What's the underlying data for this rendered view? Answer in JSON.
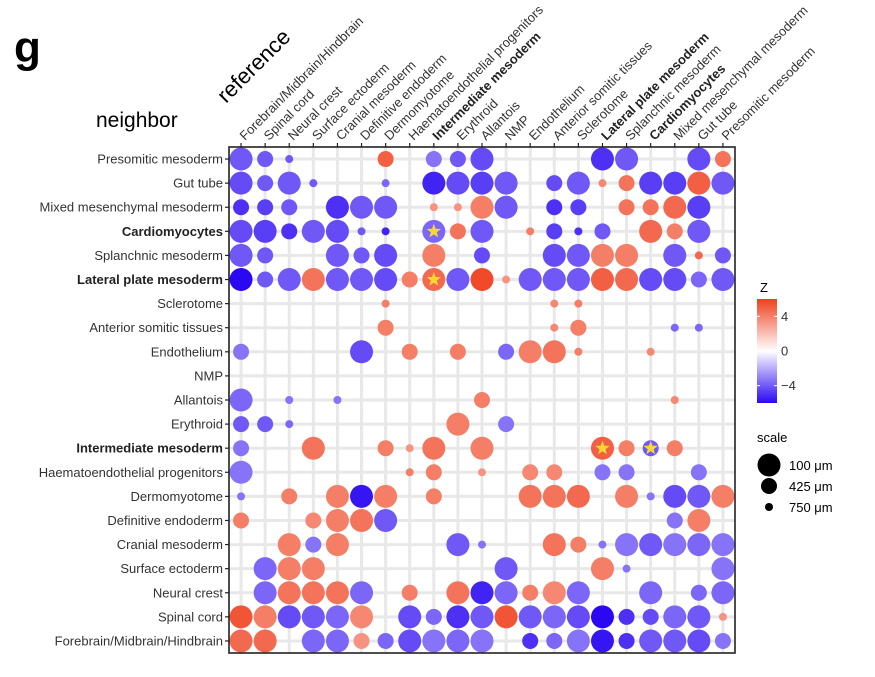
{
  "panel_label": "g",
  "chart_data": {
    "type": "bubble-heatmap",
    "x_title": "reference",
    "y_title": "neighbor",
    "categories": [
      "Forebrain/Midbrain/Hindbrain",
      "Spinal cord",
      "Neural crest",
      "Surface ectoderm",
      "Cranial mesoderm",
      "Definitive endoderm",
      "Dermomyotome",
      "Haematoendothelial progenitors",
      "Intermediate mesoderm",
      "Erythroid",
      "Allantois",
      "NMP",
      "Endothelium",
      "Anterior somitic tissues",
      "Sclerotome",
      "Lateral plate mesoderm",
      "Splanchnic mesoderm",
      "Cardiomyocytes",
      "Mixed mesenchymal mesoderm",
      "Gut tube",
      "Presomitic mesoderm"
    ],
    "bold_categories": [
      "Intermediate mesoderm",
      "Lateral plate mesoderm",
      "Cardiomyocytes"
    ],
    "points_note": "each point: [x_index (reference), y_index (neighbor, 0=Forebrain bottom row), z_score, scale_um]",
    "points": [
      [
        0,
        0,
        4,
        100
      ],
      [
        1,
        0,
        4,
        100
      ],
      [
        3,
        0,
        -2.5,
        100
      ],
      [
        4,
        0,
        -2.5,
        100
      ],
      [
        5,
        0,
        2,
        425
      ],
      [
        6,
        0,
        -2.5,
        425
      ],
      [
        7,
        0,
        -3.5,
        100
      ],
      [
        8,
        0,
        -2,
        100
      ],
      [
        9,
        0,
        -2.5,
        100
      ],
      [
        10,
        0,
        -2,
        100
      ],
      [
        12,
        0,
        -4.5,
        425
      ],
      [
        13,
        0,
        -2.5,
        425
      ],
      [
        14,
        0,
        -2,
        100
      ],
      [
        15,
        0,
        -5.5,
        100
      ],
      [
        16,
        0,
        -4.5,
        425
      ],
      [
        17,
        0,
        -3,
        100
      ],
      [
        18,
        0,
        -3,
        100
      ],
      [
        19,
        0,
        -3.5,
        100
      ],
      [
        20,
        0,
        -2,
        425
      ],
      [
        0,
        1,
        5,
        100
      ],
      [
        1,
        1,
        3,
        100
      ],
      [
        2,
        1,
        -3.5,
        100
      ],
      [
        3,
        1,
        -3,
        100
      ],
      [
        4,
        1,
        -2.5,
        100
      ],
      [
        5,
        1,
        2.5,
        100
      ],
      [
        7,
        1,
        -3.5,
        100
      ],
      [
        8,
        1,
        -2.5,
        425
      ],
      [
        9,
        1,
        -4.5,
        100
      ],
      [
        10,
        1,
        -3,
        100
      ],
      [
        11,
        1,
        5,
        100
      ],
      [
        12,
        1,
        -3,
        100
      ],
      [
        13,
        1,
        -2.5,
        100
      ],
      [
        14,
        1,
        -3.5,
        100
      ],
      [
        15,
        1,
        -6,
        100
      ],
      [
        16,
        1,
        -4.5,
        425
      ],
      [
        17,
        1,
        -3.5,
        425
      ],
      [
        18,
        1,
        -2.5,
        100
      ],
      [
        19,
        1,
        -3,
        100
      ],
      [
        20,
        1,
        2,
        750
      ],
      [
        1,
        2,
        -2.5,
        100
      ],
      [
        2,
        2,
        3.5,
        100
      ],
      [
        3,
        2,
        3.5,
        100
      ],
      [
        4,
        2,
        3.5,
        100
      ],
      [
        5,
        2,
        -2.5,
        100
      ],
      [
        7,
        2,
        3,
        425
      ],
      [
        9,
        2,
        3.5,
        100
      ],
      [
        10,
        2,
        -5,
        100
      ],
      [
        11,
        2,
        -2.5,
        100
      ],
      [
        12,
        2,
        3,
        425
      ],
      [
        13,
        2,
        2.5,
        100
      ],
      [
        14,
        2,
        -2.5,
        100
      ],
      [
        17,
        2,
        -2.5,
        100
      ],
      [
        19,
        2,
        -2.5,
        425
      ],
      [
        20,
        2,
        -2.5,
        100
      ],
      [
        1,
        3,
        -2.5,
        100
      ],
      [
        2,
        3,
        3,
        100
      ],
      [
        3,
        3,
        3,
        100
      ],
      [
        11,
        3,
        -3,
        100
      ],
      [
        15,
        3,
        3,
        100
      ],
      [
        16,
        3,
        -2,
        750
      ],
      [
        20,
        3,
        -2,
        100
      ],
      [
        2,
        4,
        3,
        100
      ],
      [
        3,
        4,
        -2,
        425
      ],
      [
        4,
        4,
        3,
        100
      ],
      [
        9,
        4,
        -3,
        100
      ],
      [
        10,
        4,
        -2,
        750
      ],
      [
        13,
        4,
        3.5,
        100
      ],
      [
        14,
        4,
        3,
        425
      ],
      [
        15,
        4,
        -2,
        750
      ],
      [
        16,
        4,
        -2,
        100
      ],
      [
        17,
        4,
        -3,
        100
      ],
      [
        18,
        4,
        -2,
        100
      ],
      [
        19,
        4,
        -2.5,
        100
      ],
      [
        20,
        4,
        -2,
        100
      ],
      [
        0,
        5,
        3,
        425
      ],
      [
        3,
        5,
        2.5,
        425
      ],
      [
        4,
        5,
        3,
        100
      ],
      [
        5,
        5,
        3.5,
        100
      ],
      [
        6,
        5,
        -3,
        100
      ],
      [
        18,
        5,
        -2,
        425
      ],
      [
        19,
        5,
        3,
        100
      ],
      [
        0,
        6,
        -2,
        750
      ],
      [
        2,
        6,
        3,
        425
      ],
      [
        4,
        6,
        3,
        100
      ],
      [
        5,
        6,
        -5.5,
        100
      ],
      [
        6,
        6,
        3,
        100
      ],
      [
        8,
        6,
        3,
        425
      ],
      [
        12,
        6,
        3.5,
        100
      ],
      [
        13,
        6,
        3.5,
        100
      ],
      [
        14,
        6,
        4,
        100
      ],
      [
        16,
        6,
        3,
        100
      ],
      [
        17,
        6,
        -2,
        750
      ],
      [
        18,
        6,
        -3.5,
        100
      ],
      [
        19,
        6,
        -3,
        100
      ],
      [
        20,
        6,
        3,
        100
      ],
      [
        0,
        7,
        -2,
        100
      ],
      [
        7,
        7,
        3,
        750
      ],
      [
        8,
        7,
        3,
        425
      ],
      [
        10,
        7,
        2,
        750
      ],
      [
        12,
        7,
        2.5,
        425
      ],
      [
        13,
        7,
        2.5,
        425
      ],
      [
        15,
        7,
        -2,
        425
      ],
      [
        16,
        7,
        -2,
        425
      ],
      [
        19,
        7,
        -2,
        425
      ],
      [
        0,
        8,
        -2,
        425
      ],
      [
        3,
        8,
        3.5,
        100
      ],
      [
        6,
        8,
        3,
        425
      ],
      [
        7,
        8,
        2,
        750
      ],
      [
        8,
        8,
        3.5,
        100
      ],
      [
        10,
        8,
        3,
        100
      ],
      [
        15,
        8,
        4.5,
        100
      ],
      [
        16,
        8,
        3,
        425
      ],
      [
        17,
        8,
        -3,
        425
      ],
      [
        18,
        8,
        3,
        425
      ],
      [
        0,
        9,
        -3,
        425
      ],
      [
        1,
        9,
        -3,
        425
      ],
      [
        2,
        9,
        -2.5,
        750
      ],
      [
        9,
        9,
        3,
        100
      ],
      [
        11,
        9,
        -2,
        425
      ],
      [
        0,
        10,
        -2.5,
        100
      ],
      [
        2,
        10,
        -2,
        750
      ],
      [
        4,
        10,
        -2,
        750
      ],
      [
        10,
        10,
        3,
        425
      ],
      [
        18,
        10,
        2.5,
        750
      ],
      [
        0,
        12,
        -2,
        425
      ],
      [
        5,
        12,
        -3.5,
        100
      ],
      [
        7,
        12,
        3,
        425
      ],
      [
        9,
        12,
        3,
        425
      ],
      [
        11,
        12,
        -2.5,
        425
      ],
      [
        12,
        12,
        3,
        100
      ],
      [
        13,
        12,
        3.5,
        100
      ],
      [
        14,
        12,
        3,
        750
      ],
      [
        17,
        12,
        2.5,
        750
      ],
      [
        6,
        13,
        3,
        425
      ],
      [
        13,
        13,
        2.5,
        750
      ],
      [
        14,
        13,
        3,
        425
      ],
      [
        18,
        13,
        -2.5,
        750
      ],
      [
        19,
        13,
        -2.5,
        750
      ],
      [
        6,
        14,
        3,
        750
      ],
      [
        13,
        14,
        2.5,
        750
      ],
      [
        14,
        14,
        3,
        750
      ],
      [
        0,
        15,
        -6,
        100
      ],
      [
        1,
        15,
        -3,
        425
      ],
      [
        2,
        15,
        -3,
        100
      ],
      [
        3,
        15,
        3.5,
        100
      ],
      [
        4,
        15,
        -3,
        100
      ],
      [
        5,
        15,
        -3,
        100
      ],
      [
        6,
        15,
        -3.5,
        100
      ],
      [
        7,
        15,
        3,
        425
      ],
      [
        8,
        15,
        4,
        100
      ],
      [
        9,
        15,
        -3,
        100
      ],
      [
        10,
        15,
        5.5,
        100
      ],
      [
        11,
        15,
        2,
        750
      ],
      [
        12,
        15,
        -3,
        100
      ],
      [
        13,
        15,
        -3,
        100
      ],
      [
        14,
        15,
        -3,
        100
      ],
      [
        15,
        15,
        4.5,
        100
      ],
      [
        16,
        15,
        4,
        100
      ],
      [
        17,
        15,
        -3.5,
        100
      ],
      [
        18,
        15,
        -3.5,
        100
      ],
      [
        19,
        15,
        -2.5,
        425
      ],
      [
        20,
        15,
        -3,
        100
      ],
      [
        0,
        16,
        -3,
        100
      ],
      [
        1,
        16,
        -3,
        425
      ],
      [
        4,
        16,
        -3,
        100
      ],
      [
        5,
        16,
        -3,
        425
      ],
      [
        6,
        16,
        -3.5,
        100
      ],
      [
        8,
        16,
        3,
        100
      ],
      [
        10,
        16,
        -3.5,
        425
      ],
      [
        13,
        16,
        -3.5,
        100
      ],
      [
        14,
        16,
        -3,
        100
      ],
      [
        15,
        16,
        3,
        100
      ],
      [
        16,
        16,
        3,
        100
      ],
      [
        18,
        16,
        -3,
        100
      ],
      [
        19,
        16,
        4,
        750
      ],
      [
        20,
        16,
        -3,
        425
      ],
      [
        0,
        17,
        -3.5,
        100
      ],
      [
        1,
        17,
        -4,
        100
      ],
      [
        2,
        17,
        -4.5,
        425
      ],
      [
        3,
        17,
        -3,
        100
      ],
      [
        4,
        17,
        -3.5,
        100
      ],
      [
        5,
        17,
        -3,
        750
      ],
      [
        6,
        17,
        -5,
        750
      ],
      [
        8,
        17,
        -2.5,
        100
      ],
      [
        9,
        17,
        3.5,
        425
      ],
      [
        10,
        17,
        -3,
        100
      ],
      [
        12,
        17,
        3,
        750
      ],
      [
        13,
        17,
        -4,
        425
      ],
      [
        14,
        17,
        -4.5,
        750
      ],
      [
        15,
        17,
        -3,
        425
      ],
      [
        17,
        17,
        4,
        100
      ],
      [
        18,
        17,
        3,
        425
      ],
      [
        19,
        17,
        -3,
        100
      ],
      [
        0,
        18,
        -4.5,
        425
      ],
      [
        1,
        18,
        -4,
        425
      ],
      [
        2,
        18,
        -3,
        425
      ],
      [
        4,
        18,
        -4.5,
        100
      ],
      [
        5,
        18,
        -3,
        100
      ],
      [
        6,
        18,
        -3,
        100
      ],
      [
        8,
        18,
        2,
        750
      ],
      [
        9,
        18,
        2,
        750
      ],
      [
        10,
        18,
        3,
        100
      ],
      [
        11,
        18,
        -3,
        100
      ],
      [
        13,
        18,
        -4.5,
        425
      ],
      [
        14,
        18,
        -4,
        425
      ],
      [
        16,
        18,
        3.5,
        425
      ],
      [
        17,
        18,
        3.5,
        425
      ],
      [
        18,
        18,
        4,
        100
      ],
      [
        19,
        18,
        -4,
        100
      ],
      [
        0,
        19,
        -3.5,
        100
      ],
      [
        1,
        19,
        -3,
        425
      ],
      [
        2,
        19,
        -3,
        100
      ],
      [
        3,
        19,
        -3,
        750
      ],
      [
        6,
        19,
        -2.5,
        750
      ],
      [
        8,
        19,
        -5,
        100
      ],
      [
        9,
        19,
        -3.5,
        100
      ],
      [
        10,
        19,
        -4,
        100
      ],
      [
        11,
        19,
        -3,
        100
      ],
      [
        13,
        19,
        -3.5,
        425
      ],
      [
        14,
        19,
        -3,
        100
      ],
      [
        15,
        19,
        2.5,
        750
      ],
      [
        16,
        19,
        3.5,
        425
      ],
      [
        17,
        19,
        -4,
        100
      ],
      [
        18,
        19,
        -4,
        100
      ],
      [
        19,
        19,
        4.5,
        100
      ],
      [
        20,
        19,
        -3,
        100
      ],
      [
        0,
        20,
        -3,
        100
      ],
      [
        1,
        20,
        -3,
        425
      ],
      [
        2,
        20,
        -3,
        750
      ],
      [
        6,
        20,
        4.5,
        425
      ],
      [
        8,
        20,
        -2,
        425
      ],
      [
        9,
        20,
        -3,
        425
      ],
      [
        10,
        20,
        -3.5,
        100
      ],
      [
        15,
        20,
        -4.5,
        100
      ],
      [
        16,
        20,
        -3,
        100
      ],
      [
        19,
        20,
        -3.5,
        100
      ],
      [
        20,
        20,
        3.5,
        425
      ]
    ],
    "stars": [
      [
        8,
        15
      ],
      [
        8,
        17
      ],
      [
        15,
        8
      ],
      [
        17,
        8
      ]
    ],
    "legend": {
      "color_title": "Z",
      "color_ticks": [
        4,
        0,
        -4
      ],
      "color_range": [
        -6,
        6
      ],
      "colors": {
        "low": "#2a08f2",
        "mid": "#ffffff",
        "high": "#f0401e"
      },
      "size_title": "scale",
      "size_entries": [
        {
          "value": 100,
          "label": "100 μm"
        },
        {
          "value": 425,
          "label": "425 μm"
        },
        {
          "value": 750,
          "label": "750 μm"
        }
      ]
    },
    "grid": true
  }
}
